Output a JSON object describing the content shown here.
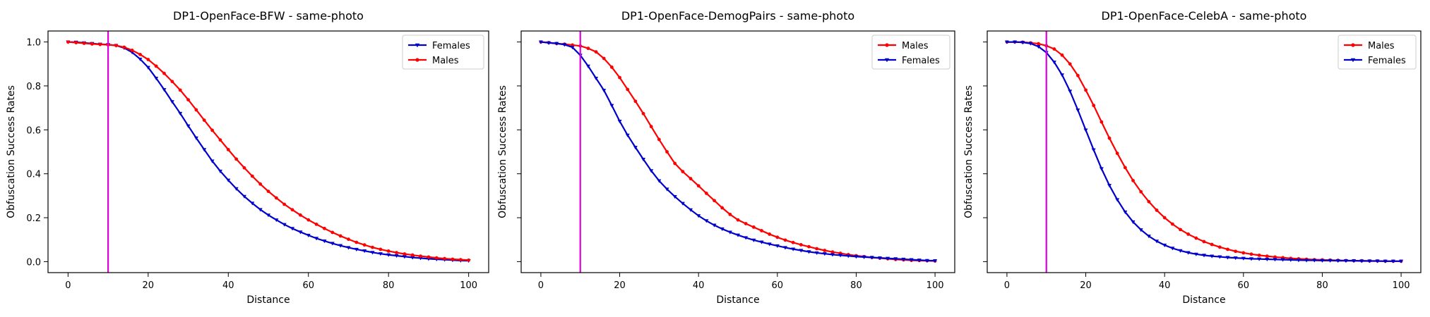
{
  "colors": {
    "males": "#ff0000",
    "females": "#0000cc",
    "threshold": "#dd00dd",
    "axes": "#000000"
  },
  "shared_xticks": [
    "0",
    "20",
    "40",
    "60",
    "80",
    "100"
  ],
  "shared_yticks": [
    "0.0",
    "0.2",
    "0.4",
    "0.6",
    "0.8",
    "1.0"
  ],
  "chart_data": [
    {
      "type": "line",
      "title": "DP1-OpenFace-BFW - same-photo",
      "xlabel": "Distance",
      "ylabel": "Obfuscation Success Rates",
      "xlim": [
        -5,
        105
      ],
      "ylim": [
        -0.05,
        1.05
      ],
      "vline_x": 10,
      "legend_position": "top-right",
      "x": [
        0,
        2,
        4,
        6,
        8,
        10,
        12,
        14,
        16,
        18,
        20,
        22,
        24,
        26,
        28,
        30,
        32,
        34,
        36,
        38,
        40,
        42,
        44,
        46,
        48,
        50,
        52,
        54,
        56,
        58,
        60,
        62,
        64,
        66,
        68,
        70,
        72,
        74,
        76,
        78,
        80,
        82,
        84,
        86,
        88,
        90,
        92,
        94,
        96,
        98,
        100
      ],
      "series": [
        {
          "name": "Females",
          "color": "#0000cc",
          "marker": "triangle",
          "values": [
            1.0,
            0.999,
            0.996,
            0.993,
            0.99,
            0.988,
            0.984,
            0.973,
            0.953,
            0.922,
            0.884,
            0.835,
            0.783,
            0.728,
            0.675,
            0.618,
            0.563,
            0.51,
            0.458,
            0.412,
            0.371,
            0.332,
            0.297,
            0.266,
            0.237,
            0.212,
            0.19,
            0.169,
            0.151,
            0.135,
            0.12,
            0.106,
            0.094,
            0.083,
            0.073,
            0.064,
            0.056,
            0.049,
            0.042,
            0.036,
            0.031,
            0.027,
            0.023,
            0.019,
            0.016,
            0.013,
            0.011,
            0.009,
            0.007,
            0.005,
            0.004
          ]
        },
        {
          "name": "Males",
          "color": "#ff0000",
          "marker": "circle",
          "values": [
            1.0,
            0.997,
            0.994,
            0.991,
            0.989,
            0.987,
            0.984,
            0.976,
            0.962,
            0.943,
            0.92,
            0.89,
            0.857,
            0.82,
            0.781,
            0.737,
            0.691,
            0.644,
            0.598,
            0.554,
            0.51,
            0.467,
            0.427,
            0.389,
            0.353,
            0.32,
            0.29,
            0.261,
            0.236,
            0.212,
            0.19,
            0.17,
            0.151,
            0.133,
            0.117,
            0.102,
            0.088,
            0.076,
            0.065,
            0.056,
            0.048,
            0.041,
            0.035,
            0.03,
            0.025,
            0.021,
            0.017,
            0.014,
            0.011,
            0.009,
            0.007
          ]
        }
      ]
    },
    {
      "type": "line",
      "title": "DP1-OpenFace-DemogPairs - same-photo",
      "xlabel": "Distance",
      "ylabel": "Obfuscation Success Rates",
      "xlim": [
        -5,
        105
      ],
      "ylim": [
        -0.05,
        1.05
      ],
      "vline_x": 10,
      "legend_position": "top-right",
      "x": [
        0,
        2,
        4,
        6,
        8,
        10,
        12,
        14,
        16,
        18,
        20,
        22,
        24,
        26,
        28,
        30,
        32,
        34,
        36,
        38,
        40,
        42,
        44,
        46,
        48,
        50,
        52,
        54,
        56,
        58,
        60,
        62,
        64,
        66,
        68,
        70,
        72,
        74,
        76,
        78,
        80,
        82,
        84,
        86,
        88,
        90,
        92,
        94,
        96,
        98,
        100
      ],
      "series": [
        {
          "name": "Males",
          "color": "#ff0000",
          "marker": "circle",
          "values": [
            1.0,
            0.997,
            0.993,
            0.99,
            0.986,
            0.982,
            0.971,
            0.955,
            0.925,
            0.885,
            0.838,
            0.784,
            0.73,
            0.674,
            0.615,
            0.556,
            0.5,
            0.447,
            0.41,
            0.378,
            0.345,
            0.311,
            0.278,
            0.245,
            0.215,
            0.19,
            0.173,
            0.157,
            0.141,
            0.125,
            0.111,
            0.098,
            0.087,
            0.077,
            0.068,
            0.059,
            0.051,
            0.044,
            0.038,
            0.032,
            0.027,
            0.023,
            0.019,
            0.016,
            0.013,
            0.01,
            0.008,
            0.006,
            0.005,
            0.004,
            0.003
          ]
        },
        {
          "name": "Females",
          "color": "#0000cc",
          "marker": "triangle",
          "values": [
            1.0,
            0.996,
            0.993,
            0.988,
            0.976,
            0.94,
            0.89,
            0.835,
            0.78,
            0.711,
            0.639,
            0.576,
            0.52,
            0.466,
            0.414,
            0.368,
            0.33,
            0.296,
            0.265,
            0.236,
            0.209,
            0.186,
            0.166,
            0.149,
            0.134,
            0.121,
            0.109,
            0.098,
            0.089,
            0.08,
            0.072,
            0.064,
            0.057,
            0.051,
            0.045,
            0.04,
            0.036,
            0.032,
            0.029,
            0.026,
            0.023,
            0.021,
            0.019,
            0.017,
            0.015,
            0.013,
            0.011,
            0.009,
            0.007,
            0.005,
            0.004
          ]
        }
      ]
    },
    {
      "type": "line",
      "title": "DP1-OpenFace-CelebA - same-photo",
      "xlabel": "Distance",
      "ylabel": "Obfuscation Success Rates",
      "xlim": [
        -5,
        105
      ],
      "ylim": [
        -0.05,
        1.05
      ],
      "vline_x": 10,
      "legend_position": "top-right",
      "x": [
        0,
        2,
        4,
        6,
        8,
        10,
        12,
        14,
        16,
        18,
        20,
        22,
        24,
        26,
        28,
        30,
        32,
        34,
        36,
        38,
        40,
        42,
        44,
        46,
        48,
        50,
        52,
        54,
        56,
        58,
        60,
        62,
        64,
        66,
        68,
        70,
        72,
        74,
        76,
        78,
        80,
        82,
        84,
        86,
        88,
        90,
        92,
        94,
        96,
        98,
        100
      ],
      "series": [
        {
          "name": "Males",
          "color": "#ff0000",
          "marker": "circle",
          "values": [
            1.0,
            1.0,
            0.999,
            0.996,
            0.992,
            0.983,
            0.968,
            0.94,
            0.9,
            0.847,
            0.781,
            0.711,
            0.636,
            0.562,
            0.493,
            0.428,
            0.369,
            0.318,
            0.273,
            0.234,
            0.2,
            0.171,
            0.146,
            0.125,
            0.107,
            0.091,
            0.078,
            0.066,
            0.056,
            0.047,
            0.04,
            0.034,
            0.029,
            0.025,
            0.021,
            0.018,
            0.015,
            0.013,
            0.011,
            0.009,
            0.008,
            0.007,
            0.006,
            0.005,
            0.004,
            0.004,
            0.003,
            0.003,
            0.002,
            0.002,
            0.002
          ]
        },
        {
          "name": "Females",
          "color": "#0000cc",
          "marker": "triangle",
          "values": [
            1.0,
            1.0,
            0.998,
            0.993,
            0.979,
            0.952,
            0.908,
            0.85,
            0.776,
            0.69,
            0.599,
            0.509,
            0.423,
            0.347,
            0.282,
            0.226,
            0.181,
            0.145,
            0.116,
            0.093,
            0.075,
            0.061,
            0.05,
            0.041,
            0.034,
            0.029,
            0.025,
            0.022,
            0.019,
            0.017,
            0.015,
            0.013,
            0.012,
            0.011,
            0.01,
            0.009,
            0.008,
            0.007,
            0.006,
            0.006,
            0.005,
            0.005,
            0.004,
            0.004,
            0.004,
            0.003,
            0.003,
            0.003,
            0.002,
            0.002,
            0.002
          ]
        }
      ]
    }
  ]
}
